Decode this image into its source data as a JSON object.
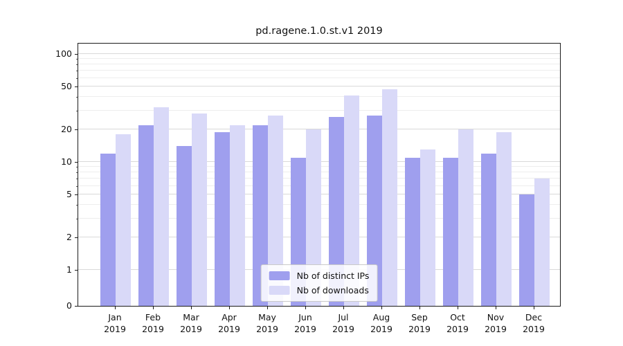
{
  "chart_data": {
    "type": "bar",
    "title": "pd.ragene.1.0.st.v1 2019",
    "categories": [
      "Jan",
      "Feb",
      "Mar",
      "Apr",
      "May",
      "Jun",
      "Jul",
      "Aug",
      "Sep",
      "Oct",
      "Nov",
      "Dec"
    ],
    "year": "2019",
    "series": [
      {
        "name": "Nb of distinct IPs",
        "color": "#9f9fee",
        "values": [
          12,
          22,
          14,
          19,
          22,
          11,
          26,
          27,
          11,
          11,
          12,
          5
        ]
      },
      {
        "name": "Nb of downloads",
        "color": "#d9d9f8",
        "values": [
          18,
          32,
          28,
          22,
          27,
          20,
          41,
          47,
          13,
          20,
          19,
          7
        ]
      }
    ],
    "xlabel": "",
    "ylabel": "",
    "yscale": "symlog",
    "yticks": [
      0,
      1,
      2,
      5,
      10,
      20,
      50,
      100
    ],
    "minor_yticks": [
      3,
      4,
      6,
      7,
      8,
      9,
      30,
      40,
      60,
      70,
      80,
      90
    ],
    "ylim": [
      0,
      125
    ],
    "grid": true,
    "legend_position": "lower center"
  },
  "colors": {
    "axis": "#1a1a1a",
    "grid_major": "#d9d9d9",
    "grid_minor": "#ededed",
    "background": "#ffffff"
  }
}
